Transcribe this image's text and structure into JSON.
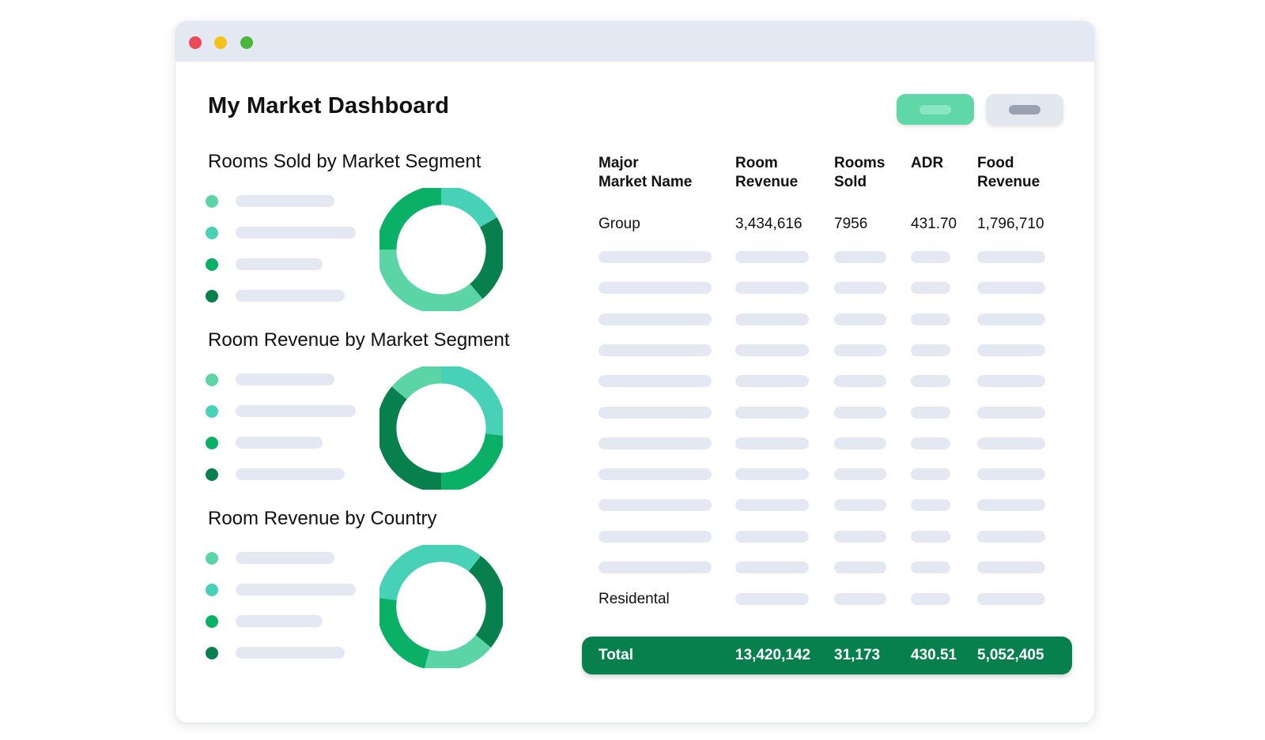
{
  "window": {
    "traffic_lights": [
      {
        "name": "close",
        "color": "#ee4758"
      },
      {
        "name": "minimize",
        "color": "#f5c21a"
      },
      {
        "name": "maximize",
        "color": "#48b93c"
      }
    ]
  },
  "header": {
    "title": "My Market Dashboard",
    "primary_button_color": "#5fd7a6",
    "secondary_button_color": "#e2e7f0"
  },
  "palette": {
    "mint": "#5bd4a6",
    "teal": "#47d1b7",
    "green": "#0ab065",
    "dark_green": "#07804d",
    "placeholder": "#e3e8f2"
  },
  "charts": [
    {
      "title": "Rooms Sold by Market Segment",
      "legend_colors": [
        "#5bd4a6",
        "#47d1b7",
        "#0ab065",
        "#07804d"
      ]
    },
    {
      "title": "Room Revenue by Market Segment",
      "legend_colors": [
        "#5bd4a6",
        "#47d1b7",
        "#0ab065",
        "#07804d"
      ]
    },
    {
      "title": "Room Revenue by Country",
      "legend_colors": [
        "#5bd4a6",
        "#47d1b7",
        "#0ab065",
        "#07804d"
      ]
    }
  ],
  "table": {
    "columns": [
      {
        "line1": "Major",
        "line2": "Market Name"
      },
      {
        "line1": "Room",
        "line2": "Revenue"
      },
      {
        "line1": "Rooms",
        "line2": "Sold"
      },
      {
        "line1": "ADR",
        "line2": ""
      },
      {
        "line1": "Food",
        "line2": "Revenue"
      }
    ],
    "first_row": {
      "name": "Group",
      "room_revenue": "3,434,616",
      "rooms_sold": "7956",
      "adr": "431.70",
      "food_revenue": "1,796,710"
    },
    "last_row_name": "Residental",
    "total": {
      "label": "Total",
      "room_revenue": "13,420,142",
      "rooms_sold": "31,173",
      "adr": "430.51",
      "food_revenue": "5,052,405",
      "color": "#07804d"
    }
  }
}
